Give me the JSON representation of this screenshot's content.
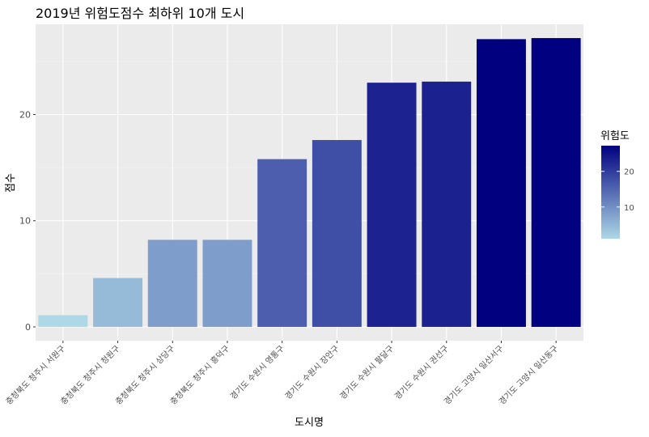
{
  "chart_data": {
    "type": "bar",
    "title": "2019년 위험도점수 최하위 10개 도시",
    "xlabel": "도시명",
    "ylabel": "점수",
    "categories": [
      "충청북도 청주시 서원구",
      "충청북도 청주시 청원구",
      "충청북도 청주시 상당구",
      "충청북도 청주시 흥덕구",
      "경기도 수원시 영통구",
      "경기도 수원시 장안구",
      "경기도 수원시 팔달구",
      "경기도 수원시 권선구",
      "경기도 고양시 일산서구",
      "경기도 고양시 일산동구"
    ],
    "values": [
      1.1,
      4.6,
      8.2,
      8.2,
      15.8,
      17.6,
      23.0,
      23.1,
      27.1,
      27.2
    ],
    "ylim": [
      -1.3,
      28.5
    ],
    "yticks": [
      0,
      10,
      20
    ],
    "grid": true,
    "legend": {
      "title": "위험도",
      "placement": "right",
      "ticks": [
        10,
        20
      ],
      "low_color": "#add8e6",
      "high_color": "#000080",
      "min": 1.1,
      "max": 27.2
    },
    "colors": {
      "panel": "#ebebeb",
      "grid_major": "#ffffff",
      "grid_minor": "#f5f5f5",
      "text": "#4d4d4d"
    }
  }
}
